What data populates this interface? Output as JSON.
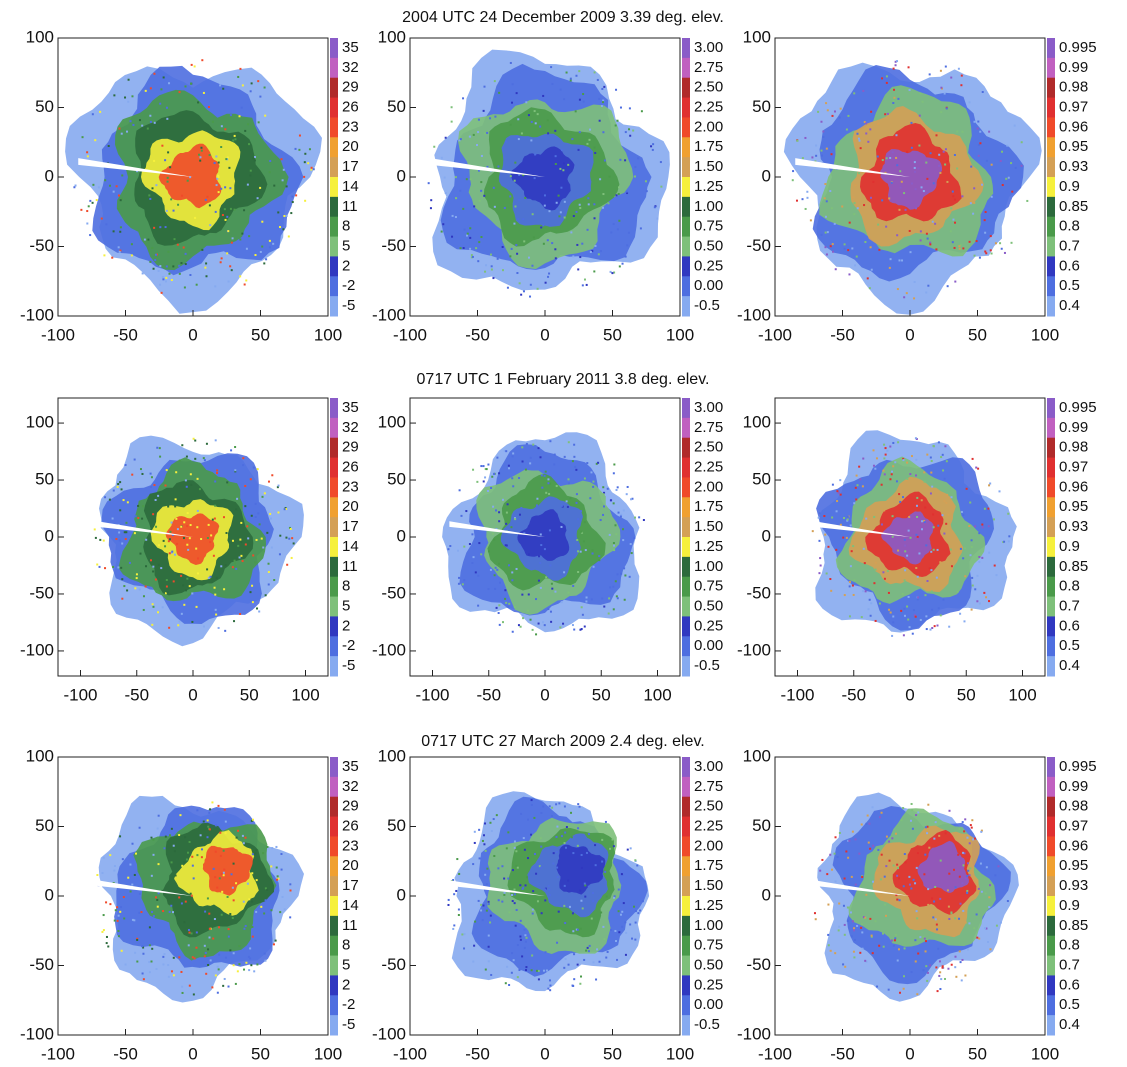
{
  "chart_data": {
    "type": "radar-grid",
    "colorbar_colors": [
      "#8a5cc8",
      "#c060c0",
      "#b02a2a",
      "#e03030",
      "#f04a2a",
      "#f0a030",
      "#d4a055",
      "#f6f03c",
      "#2c6a3c",
      "#4a9a4a",
      "#7ec07a",
      "#3038c0",
      "#4e6ee0",
      "#86aaf0"
    ],
    "colorbars": [
      [
        35,
        32,
        29,
        26,
        23,
        20,
        17,
        14,
        11,
        8,
        5,
        2,
        -2,
        -5
      ],
      [
        {
          "value": 3,
          "label": "3.00"
        },
        2.75,
        {
          "value": 2.5,
          "label": "2.50"
        },
        2.25,
        {
          "value": 2,
          "label": "2.00"
        },
        1.75,
        {
          "value": 1.5,
          "label": "1.50"
        },
        1.25,
        {
          "value": 1,
          "label": "1.00"
        },
        0.75,
        {
          "value": 0.5,
          "label": "0.50"
        },
        0.25,
        {
          "value": 0,
          "label": "0.00"
        },
        -0.5
      ],
      [
        0.995,
        0.99,
        0.98,
        0.97,
        0.96,
        0.95,
        0.93,
        0.9,
        0.85,
        0.8,
        0.7,
        0.6,
        0.5,
        0.4
      ]
    ],
    "rows": [
      {
        "title": "2004 UTC 24 December 2009 3.39 deg. elev.",
        "xlim": [
          -100,
          100
        ],
        "ylim": [
          -100,
          100
        ],
        "xticks": [
          -100,
          -50,
          0,
          50,
          100
        ],
        "yticks": [
          -100,
          -50,
          0,
          50,
          100
        ]
      },
      {
        "title": "0717 UTC 1 February 2011 3.8 deg. elev.",
        "xlim": [
          -120,
          120
        ],
        "ylim": [
          -122,
          122
        ],
        "xticks": [
          -100,
          -50,
          0,
          50,
          100
        ],
        "yticks": [
          -100,
          -50,
          0,
          50,
          100
        ]
      },
      {
        "title": "0717 UTC 27 March 2009 2.4 deg. elev.",
        "xlim": [
          -100,
          100
        ],
        "ylim": [
          -100,
          100
        ],
        "xticks": [
          -100,
          -50,
          0,
          50,
          100
        ],
        "yticks": [
          -100,
          -50,
          0,
          50,
          100
        ]
      }
    ]
  }
}
